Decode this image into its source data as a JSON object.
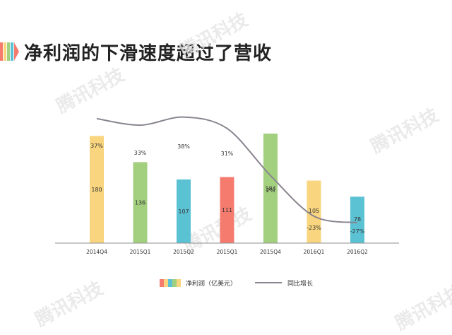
{
  "page": {
    "title": "净利润的下滑速度超过了营收",
    "watermark": "腾讯科技"
  },
  "legend": {
    "bars_label": "净利润（亿美元）",
    "line_label": "同比增长"
  },
  "chart_data": {
    "type": "bar",
    "categories": [
      "2014Q4",
      "2015Q1",
      "2015Q2",
      "2015Q1",
      "2015Q4",
      "2016Q1",
      "2016Q2"
    ],
    "series": [
      {
        "name": "净利润（亿美元）",
        "type": "bar",
        "values": [
          180,
          136,
          107,
          111,
          184,
          105,
          78
        ],
        "colors": [
          "#f8d57e",
          "#a3d07f",
          "#5bc2d4",
          "#f47b6e",
          "#a3d07f",
          "#f8d57e",
          "#5bc2d4"
        ]
      },
      {
        "name": "同比增长",
        "type": "line",
        "values": [
          37,
          33,
          38,
          31,
          2,
          -23,
          -27
        ],
        "labels": [
          "37%",
          "33%",
          "38%",
          "31%",
          "2%",
          "-23%",
          "-27%"
        ],
        "color": "#8a8490"
      }
    ],
    "legend_position": "bottom",
    "grid": false
  }
}
